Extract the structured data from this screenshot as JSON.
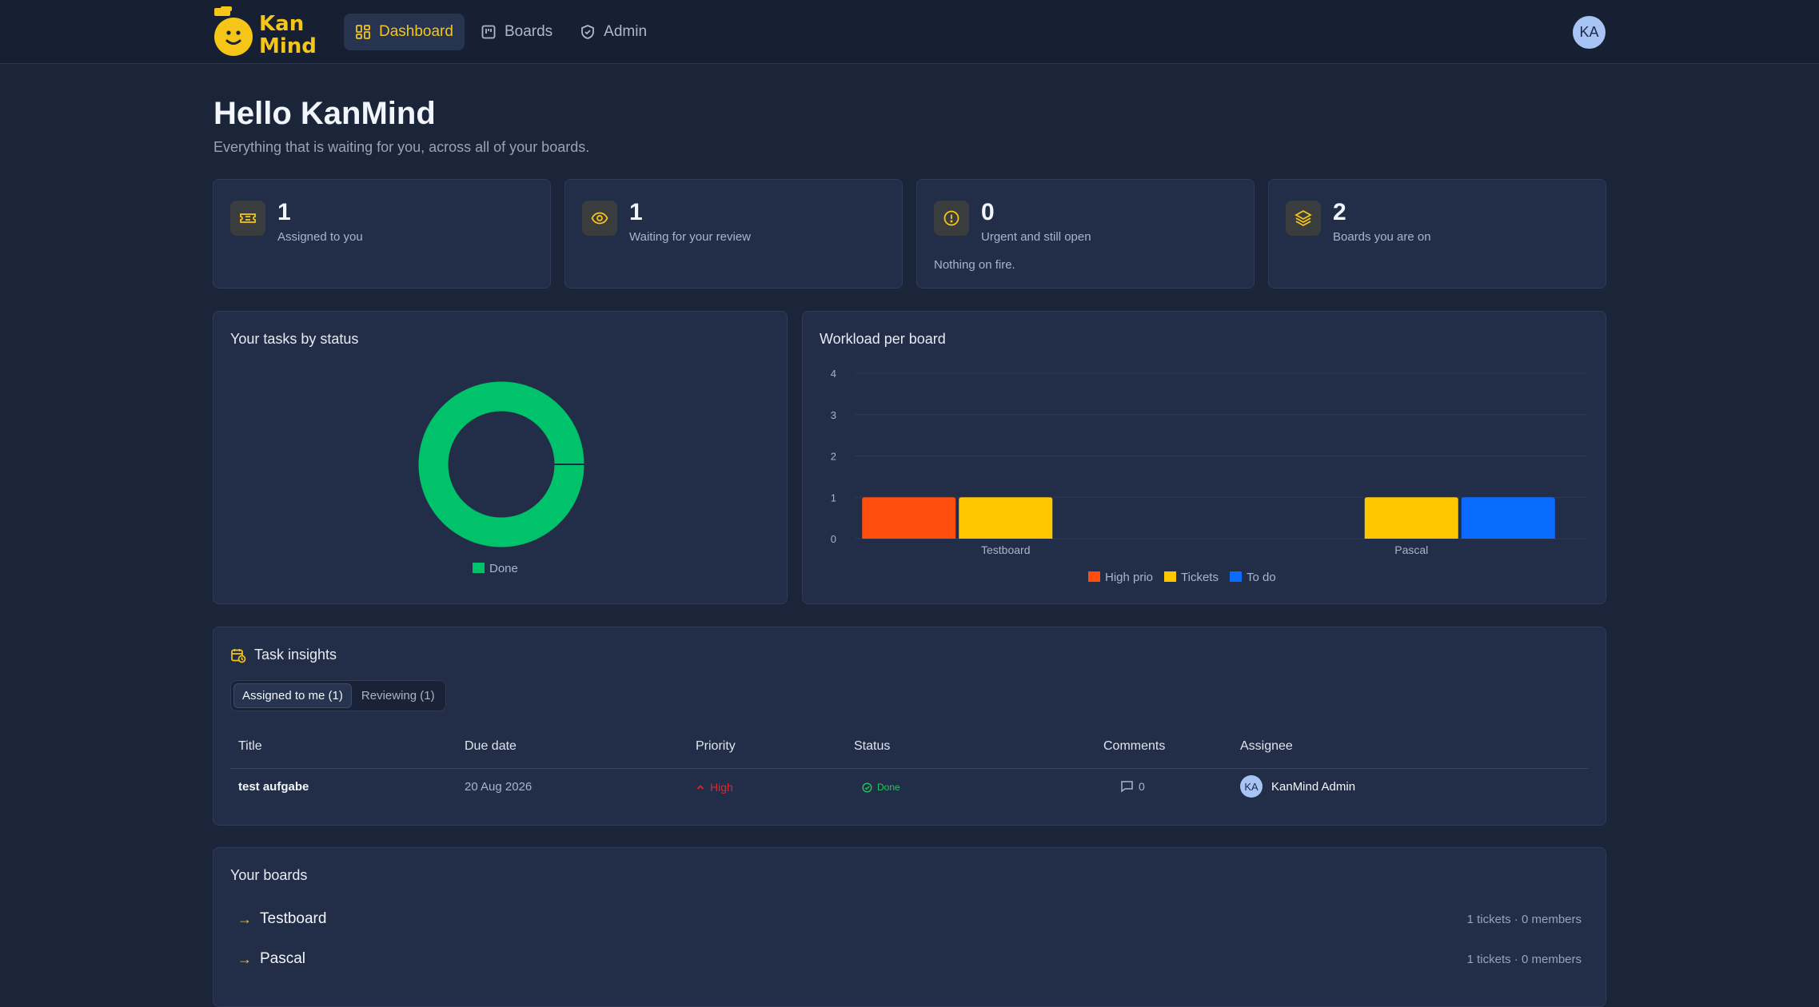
{
  "brand": {
    "logo_line1": "Kan",
    "logo_line2": "Mind",
    "accent": "#f5c518"
  },
  "nav": {
    "items": [
      {
        "label": "Dashboard",
        "icon": "dashboard-grid-icon",
        "active": true
      },
      {
        "label": "Boards",
        "icon": "board-icon",
        "active": false
      },
      {
        "label": "Admin",
        "icon": "shield-icon",
        "active": false
      }
    ],
    "avatar_initials": "KA"
  },
  "header": {
    "title": "Hello KanMind",
    "subtitle": "Everything that is waiting for you, across all of your boards."
  },
  "stats": [
    {
      "value": "1",
      "label": "Assigned to you",
      "icon": "ticket-icon",
      "note": ""
    },
    {
      "value": "1",
      "label": "Waiting for your review",
      "icon": "eye-icon",
      "note": ""
    },
    {
      "value": "0",
      "label": "Urgent and still open",
      "icon": "alert-circle-icon",
      "note": "Nothing on fire."
    },
    {
      "value": "2",
      "label": "Boards you are on",
      "icon": "layers-icon",
      "note": ""
    }
  ],
  "status_chart": {
    "title": "Your tasks by status",
    "legend": "Done"
  },
  "workload_chart": {
    "title": "Workload per board"
  },
  "chart_data": [
    {
      "type": "pie",
      "title": "Your tasks by status",
      "categories": [
        "Done"
      ],
      "values": [
        1
      ],
      "colors": [
        "#00c26a"
      ],
      "legend": "bottom"
    },
    {
      "type": "bar",
      "title": "Workload per board",
      "categories": [
        "Testboard",
        "Pascal"
      ],
      "series": [
        {
          "name": "High prio",
          "values": [
            1,
            0
          ],
          "color": "#ff4d0d"
        },
        {
          "name": "Tickets",
          "values": [
            1,
            1
          ],
          "color": "#ffc700"
        },
        {
          "name": "To do",
          "values": [
            0,
            1
          ],
          "color": "#0a6cff"
        }
      ],
      "ylim": [
        0,
        4
      ],
      "yticks": [
        "0",
        "1",
        "2",
        "3",
        "4"
      ],
      "grid": true,
      "legend": "bottom"
    }
  ],
  "insights": {
    "title": "Task insights",
    "tabs": [
      {
        "label": "Assigned to me (1)",
        "active": true
      },
      {
        "label": "Reviewing (1)",
        "active": false
      }
    ],
    "columns": [
      "Title",
      "Due date",
      "Priority",
      "Status",
      "Comments",
      "Assignee"
    ],
    "rows": [
      {
        "title": "test aufgabe",
        "due": "20 Aug 2026",
        "priority": "High",
        "status": "Done",
        "comments": "0",
        "assignee_initials": "KA",
        "assignee": "KanMind Admin"
      }
    ],
    "priority_color": "#e0262f",
    "status_color": "#22c55e"
  },
  "boards": {
    "title": "Your boards",
    "items": [
      {
        "name": "Testboard",
        "meta": "1 tickets · 0 members"
      },
      {
        "name": "Pascal",
        "meta": "1 tickets · 0 members"
      }
    ]
  }
}
